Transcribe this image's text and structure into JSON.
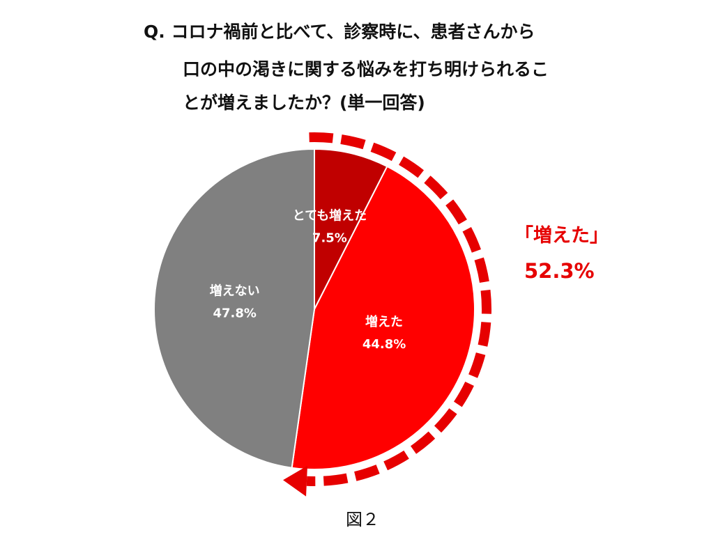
{
  "question": {
    "line1": "Q. コロナ禍前と比べて、診察時に、患者さんから",
    "line2": "口の中の渇きに関する悩みを打ち明けられるこ",
    "line3": "とが増えましたか？(単一回答)"
  },
  "callout": {
    "label": "「増えた」",
    "value": "52.3%"
  },
  "caption": "図２",
  "colors": {
    "very_increased": "#c00000",
    "increased": "#ff0000",
    "not_increased": "#808080",
    "accent": "#e60000"
  },
  "chart_data": {
    "type": "pie",
    "start": "12 o'clock",
    "direction": "clockwise",
    "slices": [
      {
        "name": "とても増えた",
        "value": 7.5,
        "label": "7.5%",
        "color": "#c00000"
      },
      {
        "name": "増えた",
        "value": 44.8,
        "label": "44.8%",
        "color": "#ff0000"
      },
      {
        "name": "増えない",
        "value": 47.8,
        "label": "47.8%",
        "color": "#808080"
      }
    ],
    "group_annotation": {
      "label": "「増えた」",
      "value": 52.3,
      "value_text": "52.3%",
      "style": "dashed arrow arc"
    }
  }
}
